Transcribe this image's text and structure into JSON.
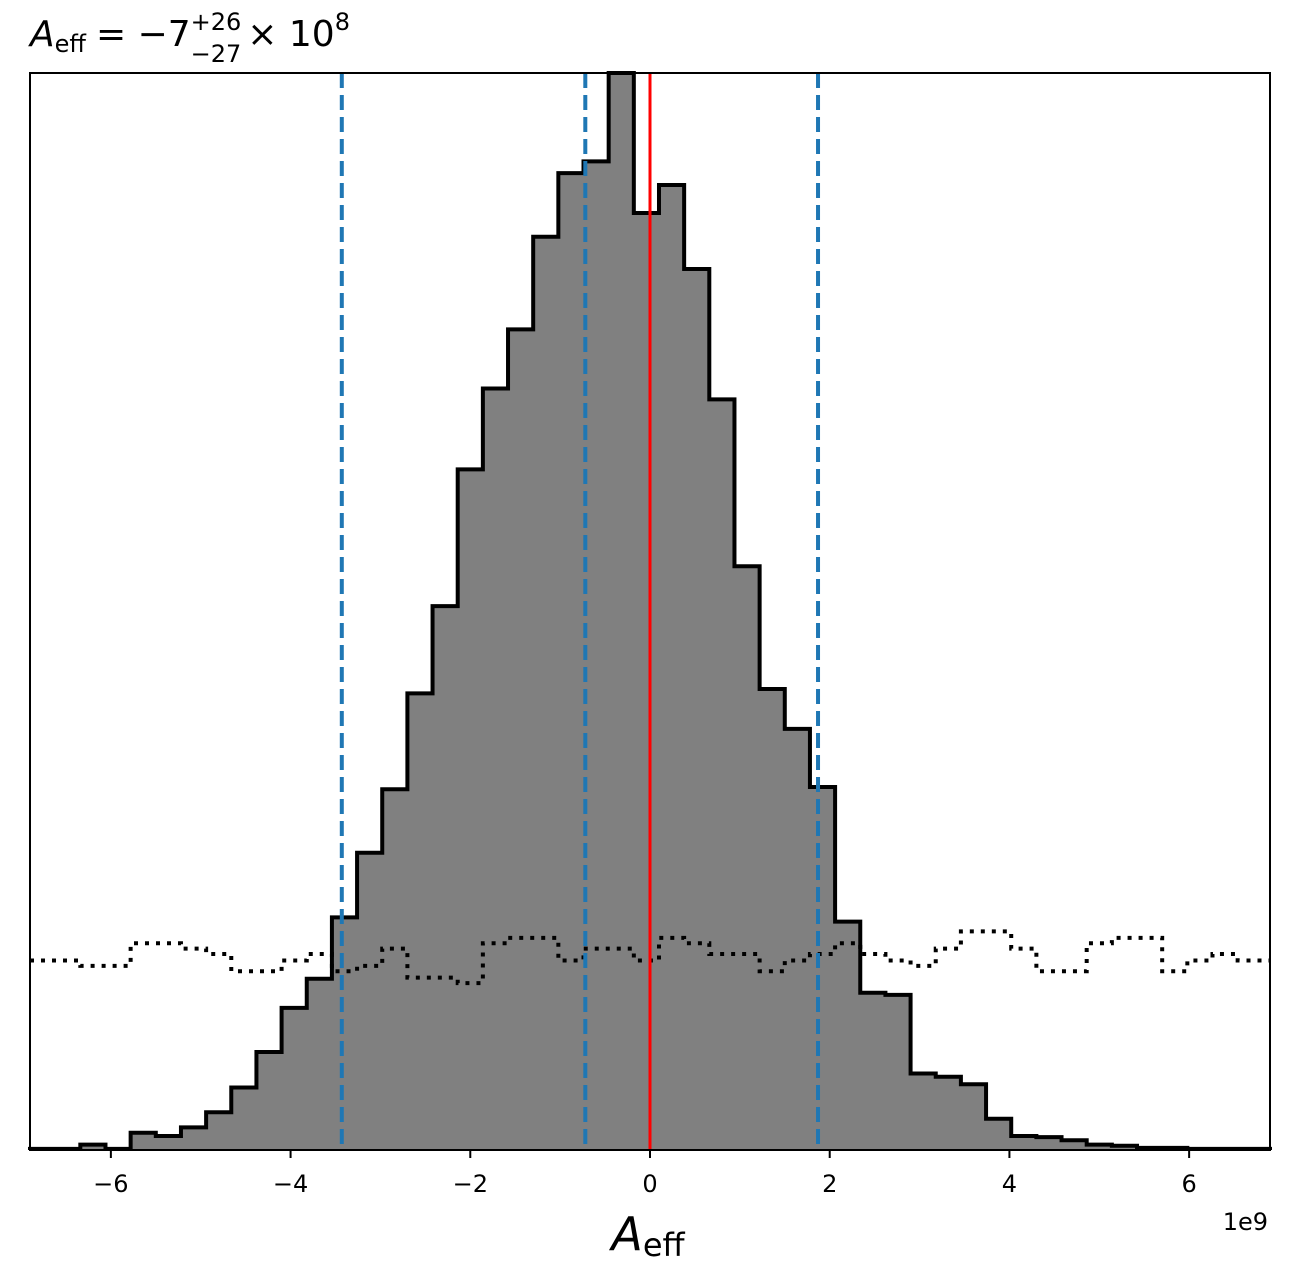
{
  "chart_data": {
    "type": "histogram",
    "title": {
      "symbol": "A",
      "symbol_sub": "eff",
      "eq": "= −7",
      "sup": "+26",
      "sub": "−27",
      "times": "× 10",
      "exp": "8"
    },
    "xlabel": {
      "symbol": "A",
      "sub": "eff"
    },
    "x_offset_label": "1e9",
    "x_scale": 1000000000,
    "xlim": [
      -6.9,
      6.9
    ],
    "ylim": [
      0,
      1
    ],
    "xticks": [
      -6,
      -4,
      -2,
      0,
      2,
      4,
      6
    ],
    "xtick_labels": [
      "−6",
      "−4",
      "−2",
      "0",
      "2",
      "4",
      "6"
    ],
    "yticks": [],
    "grid": false,
    "legend": false,
    "colors": {
      "posterior_fill": "#808080",
      "posterior_edge": "#000000",
      "prior_edge": "#000000",
      "quantile_lines": "#1f77b4",
      "injection_line": "#ff0000"
    },
    "series": [
      {
        "style": "filled-step",
        "bin_edges": [
          -6.9,
          -6.62,
          -6.34,
          -6.06,
          -5.78,
          -5.5,
          -5.22,
          -4.94,
          -4.66,
          -4.38,
          -4.1,
          -3.82,
          -3.54,
          -3.26,
          -2.98,
          -2.7,
          -2.42,
          -2.14,
          -1.86,
          -1.58,
          -1.3,
          -1.02,
          -0.74,
          -0.46,
          -0.18,
          0.1,
          0.38,
          0.66,
          0.94,
          1.22,
          1.5,
          1.78,
          2.06,
          2.34,
          2.62,
          2.9,
          3.18,
          3.46,
          3.74,
          4.02,
          4.3,
          4.58,
          4.86,
          5.14,
          5.42,
          5.7,
          5.98,
          6.26,
          6.54,
          6.82,
          6.9
        ],
        "values": [
          0.001,
          0.001,
          0.005,
          0.001,
          0.016,
          0.013,
          0.021,
          0.035,
          0.058,
          0.091,
          0.132,
          0.159,
          0.216,
          0.276,
          0.335,
          0.424,
          0.505,
          0.632,
          0.707,
          0.762,
          0.848,
          0.907,
          0.918,
          1.0,
          0.87,
          0.896,
          0.818,
          0.697,
          0.542,
          0.428,
          0.391,
          0.337,
          0.212,
          0.146,
          0.144,
          0.071,
          0.068,
          0.061,
          0.029,
          0.013,
          0.012,
          0.009,
          0.005,
          0.004,
          0.002,
          0.002,
          0.001,
          0.001,
          0.001,
          0.001
        ]
      },
      {
        "style": "dotted-step",
        "bin_edges": [
          -6.9,
          -6.62,
          -6.34,
          -6.06,
          -5.78,
          -5.5,
          -5.22,
          -4.94,
          -4.66,
          -4.38,
          -4.1,
          -3.82,
          -3.54,
          -3.26,
          -2.98,
          -2.7,
          -2.42,
          -2.14,
          -1.86,
          -1.58,
          -1.3,
          -1.02,
          -0.74,
          -0.46,
          -0.18,
          0.1,
          0.38,
          0.66,
          0.94,
          1.22,
          1.5,
          1.78,
          2.06,
          2.34,
          2.62,
          2.9,
          3.18,
          3.46,
          3.74,
          4.02,
          4.3,
          4.58,
          4.86,
          5.14,
          5.42,
          5.7,
          5.98,
          6.26,
          6.54,
          6.82,
          6.9
        ],
        "values": [
          0.176,
          0.176,
          0.171,
          0.171,
          0.192,
          0.192,
          0.187,
          0.182,
          0.166,
          0.166,
          0.176,
          0.182,
          0.166,
          0.171,
          0.187,
          0.16,
          0.16,
          0.155,
          0.192,
          0.197,
          0.197,
          0.176,
          0.187,
          0.187,
          0.176,
          0.197,
          0.192,
          0.182,
          0.182,
          0.166,
          0.176,
          0.182,
          0.192,
          0.182,
          0.176,
          0.171,
          0.187,
          0.203,
          0.203,
          0.187,
          0.166,
          0.166,
          0.192,
          0.197,
          0.197,
          0.166,
          0.176,
          0.182,
          0.176,
          0.176
        ]
      }
    ],
    "vlines": [
      {
        "x": -3.43,
        "style": "dashed",
        "color_key": "quantile_lines"
      },
      {
        "x": -0.72,
        "style": "dashed",
        "color_key": "quantile_lines"
      },
      {
        "x": 1.87,
        "style": "dashed",
        "color_key": "quantile_lines"
      },
      {
        "x": 0.0,
        "style": "solid",
        "color_key": "injection_line"
      }
    ]
  }
}
